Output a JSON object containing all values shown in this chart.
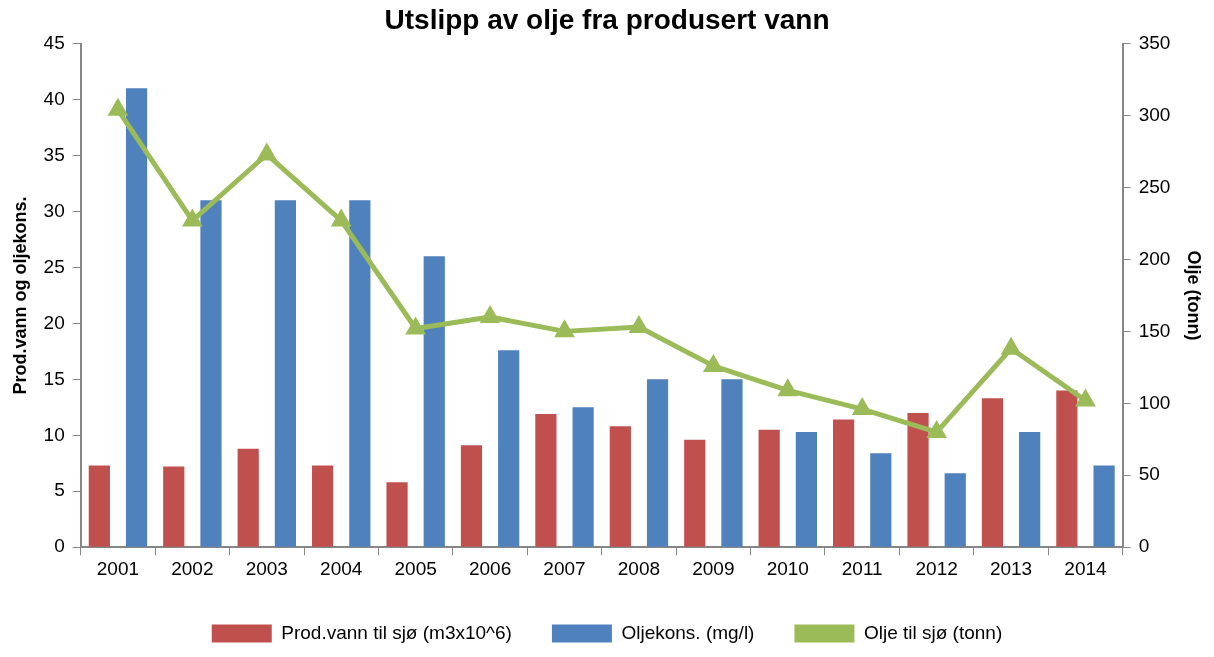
{
  "chart_data": {
    "type": "bar",
    "title": "Utslipp av olje fra produsert vann",
    "ylabel": "Prod.vann og oljekons.",
    "y2label": "Olje (tonn)",
    "categories": [
      "2001",
      "2002",
      "2003",
      "2004",
      "2005",
      "2006",
      "2007",
      "2008",
      "2009",
      "2010",
      "2011",
      "2012",
      "2013",
      "2014"
    ],
    "series": [
      {
        "name": "Prod.vann til sjø (m3x10^6)",
        "color": "#c0504d",
        "values": [
          7.3,
          7.2,
          8.8,
          7.3,
          5.8,
          9.1,
          11.9,
          10.8,
          9.6,
          10.5,
          11.4,
          12.0,
          13.3,
          14.0
        ]
      },
      {
        "name": "Oljekons. (mg/l)",
        "color": "#4f81bd",
        "values": [
          41,
          31,
          31,
          31,
          26,
          17.6,
          12.5,
          15,
          15,
          10.3,
          8.4,
          6.6,
          10.3,
          7.3
        ]
      },
      {
        "name": "Olje til sjø (tonn)",
        "type": "line",
        "axis": "y2",
        "color": "#9bbb59",
        "marker": "triangle",
        "values": [
          304,
          227,
          273,
          227,
          152,
          160,
          150,
          153,
          126,
          109,
          96,
          80,
          138,
          102
        ]
      }
    ],
    "ylim": [
      0,
      45
    ],
    "yticks": [
      0,
      5,
      10,
      15,
      20,
      25,
      30,
      35,
      40,
      45
    ],
    "y2lim": [
      0,
      350
    ],
    "y2ticks": [
      0,
      50,
      100,
      150,
      200,
      250,
      300,
      350
    ],
    "grid": false,
    "legend": "bottom"
  }
}
